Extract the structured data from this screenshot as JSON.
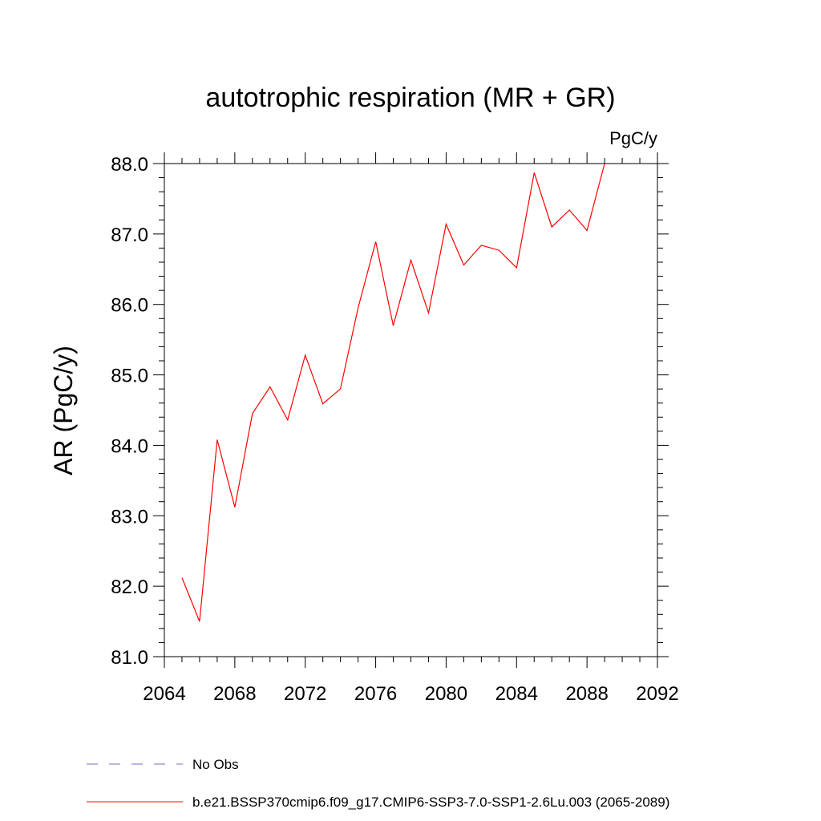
{
  "chart_data": {
    "type": "line",
    "title": "autotrophic respiration (MR + GR)",
    "units_label": "PgC/y",
    "ylabel": "AR  (PgC/y)",
    "xlabel": "",
    "xlim": [
      2064,
      2092
    ],
    "ylim": [
      81.0,
      88.0
    ],
    "x_ticks": [
      2064,
      2068,
      2072,
      2076,
      2080,
      2084,
      2088,
      2092
    ],
    "x_tick_labels": [
      "2064",
      "2068",
      "2072",
      "2076",
      "2080",
      "2084",
      "2088",
      "2092"
    ],
    "y_ticks": [
      81.0,
      82.0,
      83.0,
      84.0,
      85.0,
      86.0,
      87.0,
      88.0
    ],
    "y_tick_labels": [
      "81.0",
      "82.0",
      "83.0",
      "84.0",
      "85.0",
      "86.0",
      "87.0",
      "88.0"
    ],
    "grid": false,
    "legend_placement": "bottom",
    "series": [
      {
        "name": "b.e21.BSSP370cmip6.f09_g17.CMIP6-SSP3-7.0-SSP1-2.6Lu.003 (2065-2089)",
        "color": "#ff0000",
        "dash": "solid",
        "x": [
          2065,
          2066,
          2067,
          2068,
          2069,
          2070,
          2071,
          2072,
          2073,
          2074,
          2075,
          2076,
          2077,
          2078,
          2079,
          2080,
          2081,
          2082,
          2083,
          2084,
          2085,
          2086,
          2087,
          2088,
          2089
        ],
        "y": [
          82.12,
          81.5,
          84.08,
          83.12,
          84.45,
          84.83,
          84.36,
          85.28,
          84.59,
          84.8,
          85.95,
          86.89,
          85.7,
          86.63,
          85.88,
          87.14,
          86.56,
          86.84,
          86.77,
          86.52,
          87.87,
          87.1,
          87.34,
          87.05,
          88.0
        ]
      }
    ],
    "legend": [
      {
        "label": "No Obs",
        "color": "#7a6fc0",
        "dash": "dashed"
      },
      {
        "label": "b.e21.BSSP370cmip6.f09_g17.CMIP6-SSP3-7.0-SSP1-2.6Lu.003 (2065-2089)",
        "color": "#ff0000",
        "dash": "solid"
      }
    ]
  }
}
